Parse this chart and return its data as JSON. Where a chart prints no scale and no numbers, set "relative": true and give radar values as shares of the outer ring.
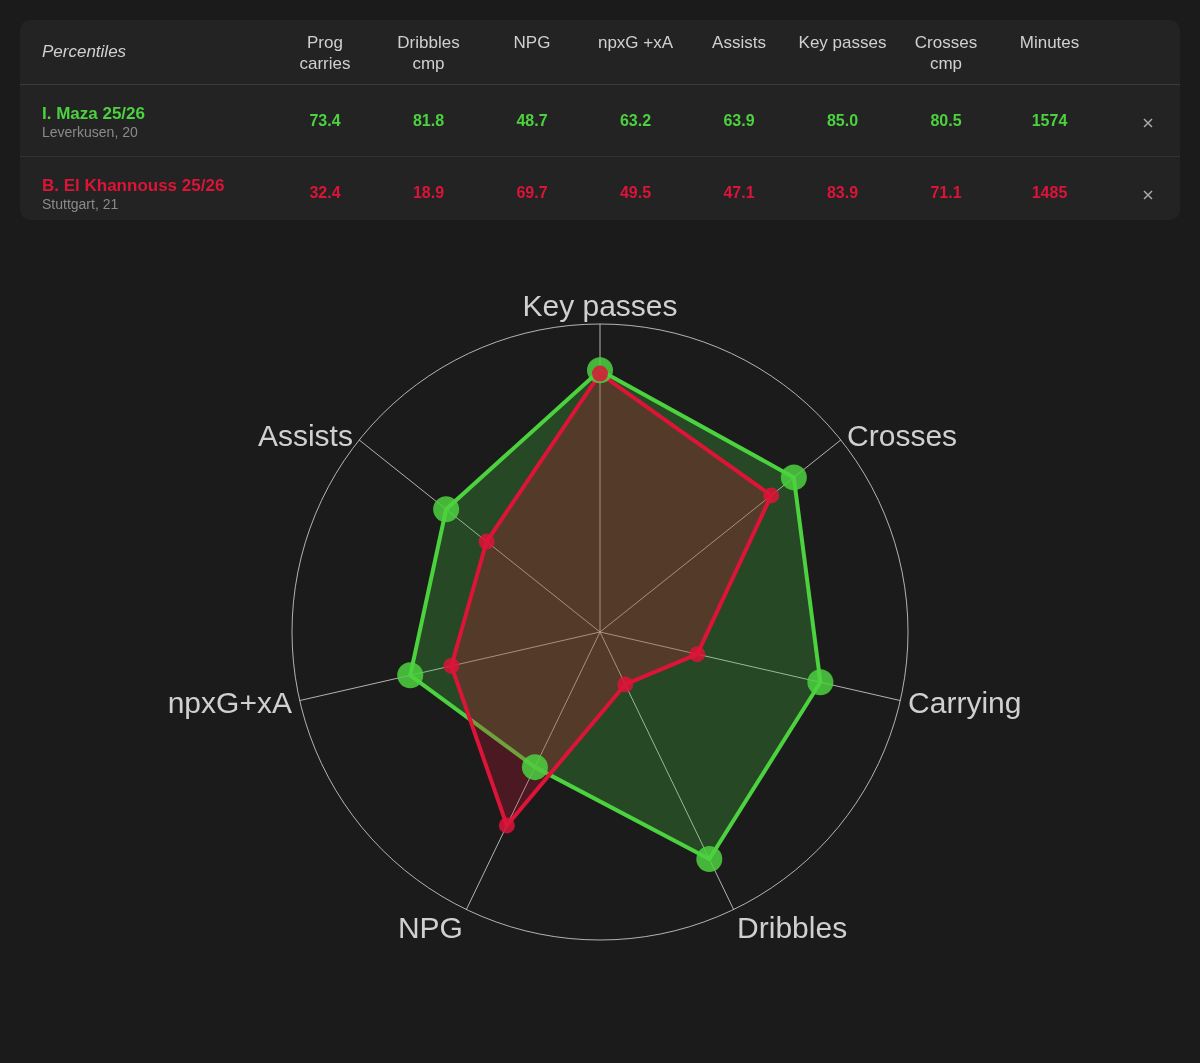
{
  "chart_data": [
    {
      "type": "other",
      "title": "Percentiles",
      "categories": [
        "Prog carries",
        "Dribbles cmp",
        "NPG",
        "npxG +xA",
        "Assists",
        "Key passes",
        "Crosses cmp",
        "Minutes"
      ],
      "series": [
        {
          "name": "I. Maza 25/26",
          "values": [
            73.4,
            81.8,
            48.7,
            63.2,
            63.9,
            85.0,
            80.5,
            1574
          ],
          "value_labels": [
            "73.4",
            "81.8",
            "48.7",
            "63.2",
            "63.9",
            "85.0",
            "80.5",
            "1574"
          ]
        },
        {
          "name": "B. El Khannouss 25/26",
          "values": [
            32.4,
            18.9,
            69.7,
            49.5,
            47.1,
            83.9,
            71.1,
            1485
          ],
          "value_labels": [
            "32.4",
            "18.9",
            "69.7",
            "49.5",
            "47.1",
            "83.9",
            "71.1",
            "1485"
          ]
        }
      ],
      "annotations": [
        "Leverkusen, 20",
        "Stuttgart, 21"
      ]
    },
    {
      "type": "radar",
      "relative": true,
      "categories": [
        "Key passes",
        "Crosses",
        "Carrying",
        "Dribbles",
        "NPG",
        "npxG+xA",
        "Assists"
      ],
      "series": [
        {
          "color": "#4cd13f",
          "values": [
            0.85,
            0.805,
            0.734,
            0.818,
            0.487,
            0.632,
            0.639
          ]
        },
        {
          "color": "#dc1438",
          "values": [
            0.839,
            0.711,
            0.324,
            0.189,
            0.697,
            0.495,
            0.471
          ]
        }
      ],
      "marker": "circle"
    }
  ]
}
